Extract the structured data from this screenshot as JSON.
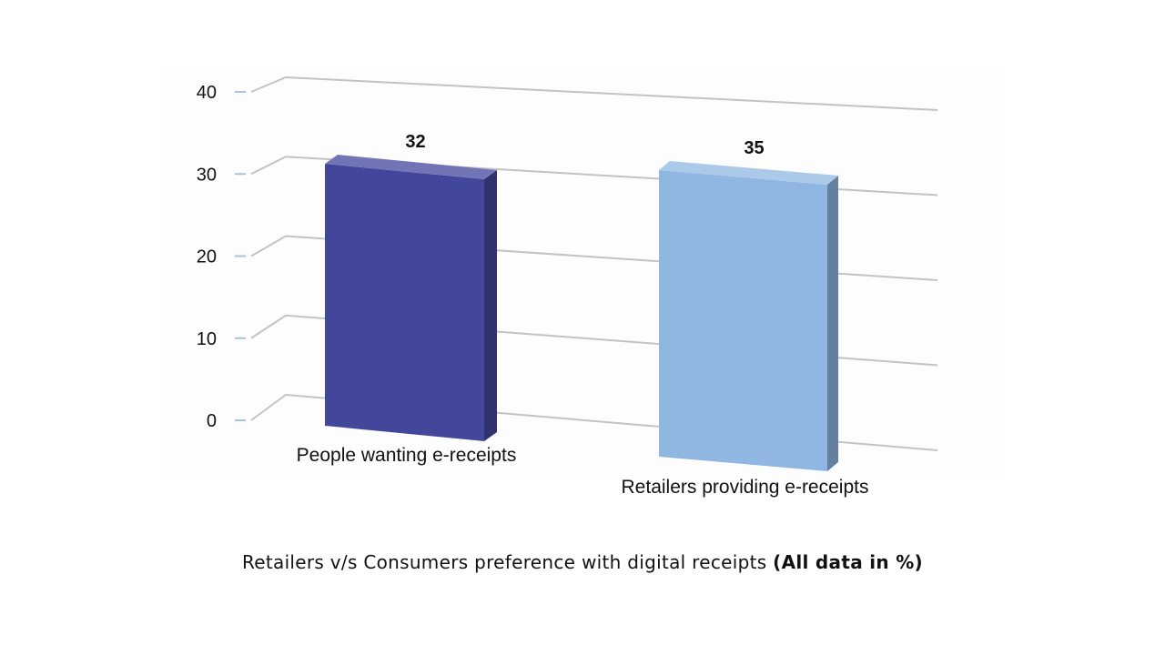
{
  "chart_data": {
    "type": "bar",
    "categories": [
      "People wanting e-receipts",
      "Retailers providing e-receipts"
    ],
    "values": [
      32,
      35
    ],
    "data_labels": [
      "32",
      "35"
    ],
    "colors": [
      "#43479c",
      "#8fb7e2"
    ],
    "y_ticks": [
      "0",
      "10",
      "20",
      "30",
      "40"
    ],
    "ylim": [
      0,
      40
    ],
    "grid": true,
    "style": "3d-column",
    "legend": "none"
  },
  "caption": {
    "text": "Retailers v/s Consumers preference with digital receipts",
    "note": "(All data in %)"
  }
}
